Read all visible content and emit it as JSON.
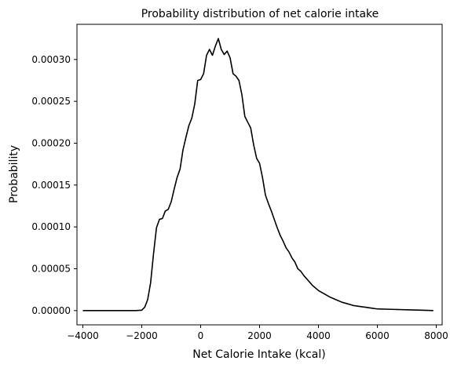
{
  "chart_data": {
    "type": "line",
    "title": "Probability distribution of net calorie intake",
    "xlabel": "Net Calorie Intake (kcal)",
    "ylabel": "Probability",
    "xlim": [
      -4200,
      8200
    ],
    "ylim": [
      -1.7e-05,
      0.000342
    ],
    "xticks": [
      -4000,
      -2000,
      0,
      2000,
      4000,
      6000,
      8000
    ],
    "xtick_labels": [
      "−4000",
      "−2000",
      "0",
      "2000",
      "4000",
      "6000",
      "8000"
    ],
    "yticks": [
      0,
      5e-05,
      0.0001,
      0.00015,
      0.0002,
      0.00025,
      0.0003
    ],
    "ytick_labels": [
      "0.00000",
      "0.00005",
      "0.00010",
      "0.00015",
      "0.00020",
      "0.00025",
      "0.00030"
    ],
    "grid": false,
    "line_color": "#000000",
    "series": [
      {
        "x": [
          -4000,
          -3500,
          -3000,
          -2500,
          -2200,
          -2000,
          -1900,
          -1800,
          -1700,
          -1600,
          -1500,
          -1400,
          -1300,
          -1200,
          -1100,
          -1000,
          -900,
          -800,
          -700,
          -600,
          -500,
          -400,
          -300,
          -200,
          -100,
          0,
          100,
          200,
          300,
          400,
          500,
          600,
          700,
          800,
          900,
          1000,
          1100,
          1200,
          1300,
          1400,
          1500,
          1600,
          1700,
          1800,
          1900,
          2000,
          2100,
          2200,
          2300,
          2400,
          2500,
          2600,
          2700,
          2800,
          2900,
          3000,
          3100,
          3200,
          3300,
          3400,
          3500,
          3600,
          3700,
          3800,
          3900,
          4000,
          4200,
          4400,
          4600,
          4800,
          5000,
          5200,
          5400,
          5600,
          5800,
          6000,
          6500,
          7000,
          7500,
          7900
        ],
        "y": [
          0,
          0,
          0,
          0,
          0,
          5e-07,
          4e-06,
          1.3e-05,
          3.3e-05,
          6.8e-05,
          9.9e-05,
          0.000109,
          0.00011,
          0.000119,
          0.000121,
          0.00013,
          0.000145,
          0.000159,
          0.000169,
          0.000192,
          0.000207,
          0.000221,
          0.00023,
          0.000247,
          0.000275,
          0.000276,
          0.000283,
          0.000305,
          0.000312,
          0.000305,
          0.000316,
          0.000325,
          0.000312,
          0.000306,
          0.00031,
          0.000302,
          0.000283,
          0.00028,
          0.000275,
          0.000258,
          0.000232,
          0.000225,
          0.000218,
          0.000198,
          0.000182,
          0.000176,
          0.000159,
          0.000138,
          0.000128,
          0.000119,
          0.000109,
          9.9e-05,
          9e-05,
          8.3e-05,
          7.5e-05,
          7e-05,
          6.3e-05,
          5.8e-05,
          5e-05,
          4.7e-05,
          4.2e-05,
          3.8e-05,
          3.4e-05,
          3e-05,
          2.7e-05,
          2.4e-05,
          2e-05,
          1.6e-05,
          1.3e-05,
          1e-05,
          8e-06,
          6e-06,
          5e-06,
          4e-06,
          3e-06,
          2e-06,
          1.5e-06,
          1e-06,
          5e-07,
          0
        ]
      }
    ]
  }
}
